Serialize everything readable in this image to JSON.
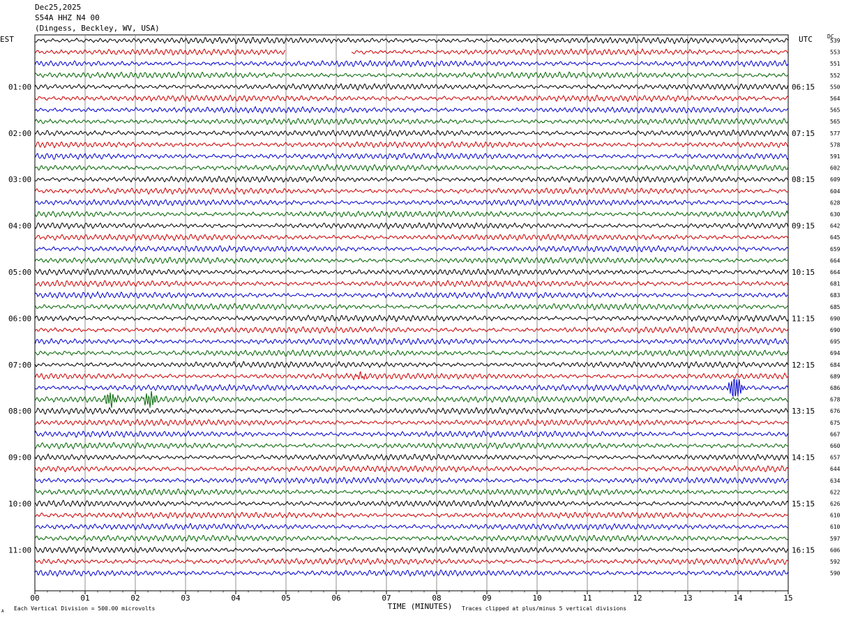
{
  "header": {
    "date": "Dec25,2025",
    "station": "S54A HHZ N4 00",
    "location": "(Dingess, Beckley, WV, USA)"
  },
  "left_timezone": "EST",
  "right_timezone": "UTC",
  "dc_label": "DC",
  "footer": {
    "scale_note": "Each Vertical Division =  500.00 microvolts",
    "clip_note": "Traces clipped at plus/minus 5 vertical divisions",
    "corner_mark": "A"
  },
  "colors": {
    "trace_cycle": [
      "#000000",
      "#cc0000",
      "#0000cc",
      "#006400"
    ],
    "grid": "#000000"
  },
  "chart_data": {
    "type": "line",
    "title": "",
    "xlabel": "TIME (MINUTES)",
    "xlim": [
      0,
      15
    ],
    "x_ticks": [
      "00",
      "01",
      "02",
      "03",
      "04",
      "05",
      "06",
      "07",
      "08",
      "09",
      "10",
      "11",
      "12",
      "13",
      "14",
      "15"
    ],
    "left_hour_labels": [
      "01:00",
      "02:00",
      "03:00",
      "04:00",
      "05:00",
      "06:00",
      "07:00",
      "08:00",
      "09:00",
      "10:00",
      "11:00"
    ],
    "right_hour_labels": [
      "06:15",
      "07:15",
      "08:15",
      "09:15",
      "10:15",
      "11:15",
      "12:15",
      "13:15",
      "14:15",
      "15:15",
      "16:15"
    ],
    "dc_offsets": [
      539,
      553,
      551,
      552,
      550,
      564,
      565,
      565,
      577,
      578,
      591,
      602,
      609,
      604,
      628,
      630,
      642,
      645,
      659,
      664,
      664,
      681,
      683,
      685,
      690,
      690,
      695,
      694,
      684,
      689,
      686,
      678,
      676,
      675,
      667,
      660,
      657,
      644,
      634,
      622,
      626,
      610,
      610,
      597,
      606,
      592,
      590
    ],
    "gaps": [
      {
        "row": 1,
        "from_minute": 5.0,
        "to_minute": 6.3
      }
    ],
    "events": [
      {
        "row": 31,
        "minute": 1.5,
        "amplitude": 2.2
      },
      {
        "row": 31,
        "minute": 2.3,
        "amplitude": 2.6
      },
      {
        "row": 30,
        "minute": 13.95,
        "amplitude": 4.5
      },
      {
        "row": 29,
        "minute": 6.5,
        "amplitude": 0.8
      }
    ]
  }
}
